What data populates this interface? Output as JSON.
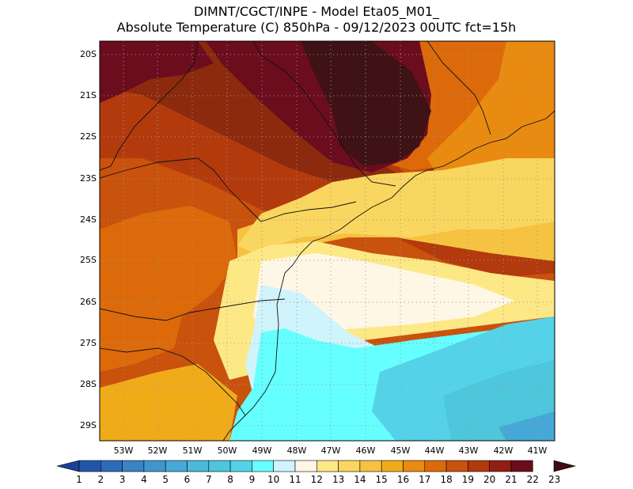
{
  "header": {
    "line1": "DIMNT/CGCT/INPE -  Model Eta05_M01_",
    "line2": "Absolute Temperature (C) 850hPa -  09/12/2023 00UTC fct=15h"
  },
  "axes": {
    "lat_labels": [
      "20S",
      "21S",
      "22S",
      "23S",
      "24S",
      "25S",
      "26S",
      "27S",
      "28S",
      "29S"
    ],
    "lon_labels": [
      "53W",
      "52W",
      "51W",
      "50W",
      "49W",
      "48W",
      "47W",
      "46W",
      "45W",
      "44W",
      "43W",
      "42W",
      "41W"
    ]
  },
  "colorbar": {
    "labels": [
      "1",
      "2",
      "3",
      "4",
      "5",
      "6",
      "7",
      "8",
      "9",
      "10",
      "11",
      "12",
      "13",
      "14",
      "15",
      "16",
      "17",
      "18",
      "19",
      "20",
      "21",
      "22",
      "23"
    ],
    "colors": [
      "#1c3f97",
      "#2456a8",
      "#2c6db9",
      "#3a83c4",
      "#4096cc",
      "#46a8d6",
      "#4bbad9",
      "#4ec6db",
      "#54d3e8",
      "#66ffff",
      "#cff4fc",
      "#fff7e6",
      "#fde886",
      "#f9d65f",
      "#f5c242",
      "#f0ab19",
      "#e98b10",
      "#dc6a0a",
      "#c9520d",
      "#b23a0d",
      "#921f12",
      "#6b0d1d",
      "#3f0c12"
    ]
  },
  "map": {
    "lat_range": [
      -29.4,
      -19.7
    ],
    "lon_range": [
      -53.8,
      -40.6
    ],
    "field_colors": {
      "deep": "#3f1215",
      "maroon": "#6b0d1d",
      "dark_red": "#8b2a0d",
      "red_orange": "#b23a0d",
      "orange_red": "#c9520d",
      "orange": "#dc6a0a",
      "light_orange": "#e98b10",
      "gold": "#f0ab19",
      "yellow_orange": "#f5c242",
      "yellow": "#f9d65f",
      "pale_yellow": "#fde886",
      "cream": "#fff7e6",
      "pale_cyan": "#cff4fc",
      "cyan": "#66ffff",
      "blue_cyan": "#54d3e8",
      "teal": "#4ec6db",
      "sky": "#46a8d6"
    }
  }
}
